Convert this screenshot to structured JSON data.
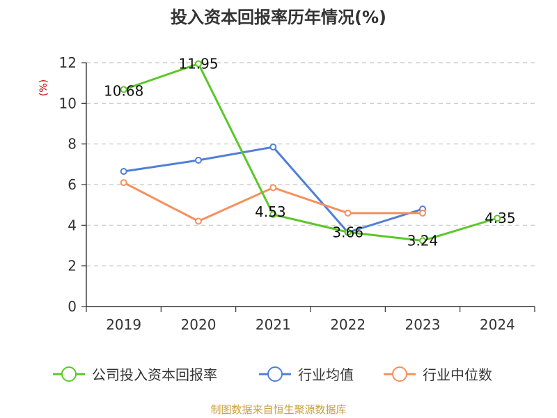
{
  "chart_data": {
    "type": "line",
    "title": "投入资本回报率历年情况(%)",
    "ylabel": "(%)",
    "xlabel": "",
    "categories": [
      "2019",
      "2020",
      "2021",
      "2022",
      "2023",
      "2024"
    ],
    "ylim": [
      0,
      12
    ],
    "yticks": [
      "0",
      "2",
      "4",
      "6",
      "8",
      "10",
      "12"
    ],
    "grid": true,
    "legend_position": "bottom",
    "series": [
      {
        "name": "公司投入资本回报率",
        "color": "#5cc72a",
        "values": [
          10.68,
          11.95,
          4.53,
          3.66,
          3.24,
          4.35
        ],
        "labels": [
          "10.68",
          "11.95",
          "4.53",
          "3.66",
          "3.24",
          "4.35"
        ]
      },
      {
        "name": "行业均值",
        "color": "#4f7fd9",
        "values": [
          6.65,
          7.2,
          7.85,
          3.65,
          4.8,
          null
        ]
      },
      {
        "name": "行业中位数",
        "color": "#f5905c",
        "values": [
          6.1,
          4.2,
          5.85,
          4.6,
          4.6,
          null
        ]
      }
    ]
  },
  "source": "制图数据来自恒生聚源数据库"
}
